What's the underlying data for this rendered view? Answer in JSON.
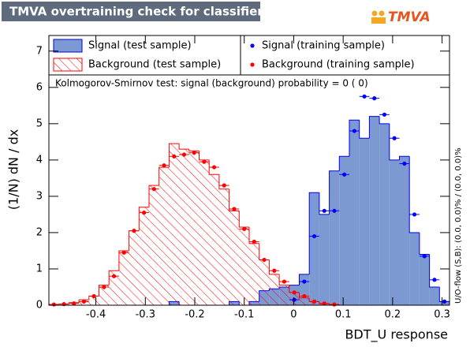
{
  "chart_data": {
    "type": "histogram",
    "title": "TMVA overtraining check for classifier: BDT_U",
    "logo": "TMVA",
    "xlabel": "BDT_U response",
    "ylabel": "(1/N) dN / dx",
    "annotation": "Kolmogorov-Smirnov test: signal (background) probability =     0 (    0)",
    "side_note": "U/O-flow (S,B): (0.0, 0.0)% / (0.0, 0.0)%",
    "xlim": [
      -0.495,
      0.315
    ],
    "ylim": [
      0,
      7.43
    ],
    "xticks": [
      -0.4,
      -0.3,
      -0.2,
      -0.1,
      0,
      0.1,
      0.2,
      0.3
    ],
    "yticks": [
      0,
      1,
      2,
      3,
      4,
      5,
      6,
      7
    ],
    "bins": [
      -0.495,
      -0.47475,
      -0.4545,
      -0.43425,
      -0.414,
      -0.39375,
      -0.3735,
      -0.35325,
      -0.333,
      -0.31275,
      -0.2925,
      -0.27225,
      -0.252,
      -0.23175,
      -0.2115,
      -0.19125,
      -0.171,
      -0.15075,
      -0.1305,
      -0.11025,
      -0.09,
      -0.06975,
      -0.0495,
      -0.02925,
      -0.009,
      0.01125,
      0.0315,
      0.05175,
      0.072,
      0.09225,
      0.1125,
      0.13275,
      0.153,
      0.17325,
      0.1935,
      0.21375,
      0.234,
      0.25425,
      0.2745,
      0.29475,
      0.315
    ],
    "series": [
      {
        "name": "Signal (test sample)",
        "color": "#7d99d1",
        "draw": "fill",
        "values": [
          0,
          0,
          0,
          0,
          0,
          0,
          0,
          0,
          0,
          0,
          0,
          0,
          0.1,
          0,
          0,
          0,
          0,
          0,
          0.1,
          0,
          0.1,
          0.4,
          0.45,
          0.5,
          0.55,
          0.85,
          3.1,
          2.5,
          3.7,
          4.1,
          5.1,
          4.6,
          5.2,
          5.0,
          4.0,
          4.1,
          2.0,
          1.4,
          0.5,
          0.1
        ]
      },
      {
        "name": "Background (test sample)",
        "color": "#ff0000",
        "draw": "hatch",
        "values": [
          0.02,
          0.03,
          0.07,
          0.15,
          0.25,
          0.55,
          0.95,
          1.5,
          2.05,
          2.7,
          3.3,
          3.8,
          4.45,
          4.3,
          4.25,
          4.0,
          3.6,
          3.2,
          2.6,
          2.15,
          1.7,
          1.25,
          0.85,
          0.55,
          0.35,
          0.2,
          0.1,
          0.04,
          0.02,
          0,
          0,
          0,
          0,
          0,
          0,
          0,
          0,
          0,
          0,
          0
        ]
      },
      {
        "name": "Signal (training sample)",
        "color": "#0000ff",
        "draw": "points",
        "values": [
          null,
          null,
          null,
          null,
          null,
          null,
          null,
          null,
          null,
          null,
          null,
          null,
          null,
          null,
          null,
          null,
          null,
          null,
          null,
          null,
          null,
          null,
          null,
          null,
          0.15,
          0.65,
          1.9,
          2.6,
          2.6,
          3.6,
          4.8,
          5.75,
          5.7,
          5.25,
          4.6,
          3.9,
          2.5,
          1.35,
          0.7,
          0.1
        ]
      },
      {
        "name": "Background (training sample)",
        "color": "#ff0000",
        "draw": "points",
        "values": [
          0.02,
          0.03,
          0.05,
          0.1,
          0.25,
          0.5,
          0.8,
          1.45,
          2.05,
          2.55,
          3.2,
          3.85,
          4.1,
          4.15,
          4.2,
          3.95,
          3.8,
          3.3,
          2.65,
          2.1,
          1.75,
          1.25,
          0.95,
          0.65,
          0.35,
          0.25,
          0.1,
          0.05,
          0.02,
          null,
          null,
          null,
          null,
          null,
          null,
          null,
          null,
          null,
          null,
          null
        ]
      }
    ]
  }
}
